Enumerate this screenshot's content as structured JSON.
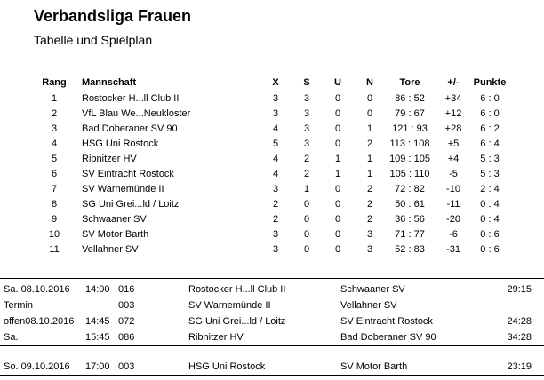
{
  "header": {
    "title": "Verbandsliga Frauen",
    "subtitle": "Tabelle und Spielplan"
  },
  "standings": {
    "columns": {
      "rang": "Rang",
      "team": "Mannschaft",
      "x": "X",
      "s": "S",
      "u": "U",
      "n": "N",
      "tore": "Tore",
      "diff": "+/-",
      "punkte": "Punkte"
    },
    "rows": [
      {
        "rang": "1",
        "team": "Rostocker H...ll Club II",
        "x": "3",
        "s": "3",
        "u": "0",
        "n": "0",
        "tore": "86 : 52",
        "diff": "+34",
        "punkte": "6 : 0"
      },
      {
        "rang": "2",
        "team": "VfL Blau We...Neukloster",
        "x": "3",
        "s": "3",
        "u": "0",
        "n": "0",
        "tore": "79 : 67",
        "diff": "+12",
        "punkte": "6 : 0"
      },
      {
        "rang": "3",
        "team": "Bad Doberaner SV 90",
        "x": "4",
        "s": "3",
        "u": "0",
        "n": "1",
        "tore": "121 : 93",
        "diff": "+28",
        "punkte": "6 : 2"
      },
      {
        "rang": "4",
        "team": "HSG Uni Rostock",
        "x": "5",
        "s": "3",
        "u": "0",
        "n": "2",
        "tore": "113 : 108",
        "diff": "+5",
        "punkte": "6 : 4"
      },
      {
        "rang": "5",
        "team": "Ribnitzer HV",
        "x": "4",
        "s": "2",
        "u": "1",
        "n": "1",
        "tore": "109 : 105",
        "diff": "+4",
        "punkte": "5 : 3"
      },
      {
        "rang": "6",
        "team": "SV Eintracht Rostock",
        "x": "4",
        "s": "2",
        "u": "1",
        "n": "1",
        "tore": "105 : 110",
        "diff": "-5",
        "punkte": "5 : 3"
      },
      {
        "rang": "7",
        "team": "SV Warnemünde II",
        "x": "3",
        "s": "1",
        "u": "0",
        "n": "2",
        "tore": "72 : 82",
        "diff": "-10",
        "punkte": "2 : 4"
      },
      {
        "rang": "8",
        "team": "SG Uni Grei...ld / Loitz",
        "x": "2",
        "s": "0",
        "u": "0",
        "n": "2",
        "tore": "50 : 61",
        "diff": "-11",
        "punkte": "0 : 4"
      },
      {
        "rang": "9",
        "team": "Schwaaner SV",
        "x": "2",
        "s": "0",
        "u": "0",
        "n": "2",
        "tore": "36 : 56",
        "diff": "-20",
        "punkte": "0 : 4"
      },
      {
        "rang": "10",
        "team": "SV Motor Barth",
        "x": "3",
        "s": "0",
        "u": "0",
        "n": "3",
        "tore": "71 : 77",
        "diff": "-6",
        "punkte": "0 : 6"
      },
      {
        "rang": "11",
        "team": "Vellahner SV",
        "x": "3",
        "s": "0",
        "u": "0",
        "n": "3",
        "tore": "52 : 83",
        "diff": "-31",
        "punkte": "0 : 6"
      }
    ]
  },
  "schedule": {
    "group1": [
      {
        "day": "Sa. 08.10.2016",
        "time": "14:00",
        "no": "016",
        "home": "Rostocker H...ll Club II",
        "away": "Schwaaner SV",
        "score": "29:15"
      },
      {
        "day": "Termin",
        "time": "",
        "no": "003",
        "home": "SV Warnemünde II",
        "away": "Vellahner SV",
        "score": ""
      },
      {
        "day": "offen08.10.2016",
        "time": "14:45",
        "no": "072",
        "home": "SG Uni Grei...ld / Loitz",
        "away": "SV Eintracht Rostock",
        "score": "24:28"
      },
      {
        "day": "Sa.",
        "time": "15:45",
        "no": "086",
        "home": "Ribnitzer HV",
        "away": "Bad Doberaner SV 90",
        "score": "34:28"
      }
    ],
    "group2": [
      {
        "day": "So. 09.10.2016",
        "time": "17:00",
        "no": "003",
        "home": "HSG Uni Rostock",
        "away": "SV Motor Barth",
        "score": "23:19"
      }
    ]
  }
}
